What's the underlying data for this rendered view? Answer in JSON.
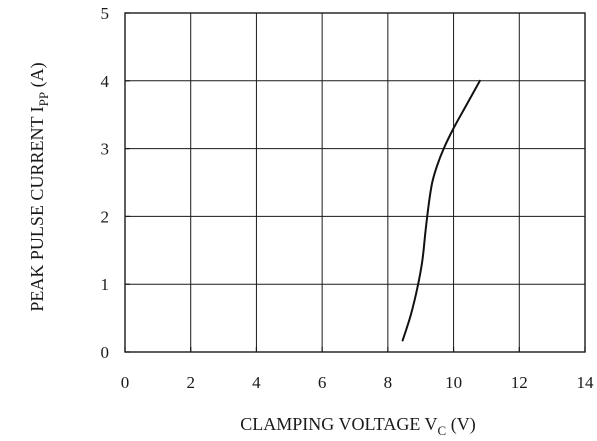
{
  "chart_data": {
    "type": "line",
    "xlabel": {
      "main": "CLAMPING VOLTAGE V",
      "sub": "C",
      "unit": " (V)"
    },
    "ylabel": {
      "main": "PEAK PULSE CURRENT I",
      "sub": "PP",
      "unit": "  (A)"
    },
    "xlim": [
      0,
      14
    ],
    "ylim": [
      0,
      5
    ],
    "x_ticks": [
      0,
      2,
      4,
      6,
      8,
      10,
      12,
      14
    ],
    "y_ticks": [
      0,
      1,
      2,
      3,
      4,
      5
    ],
    "grid": true,
    "series": [
      {
        "x": [
          8.45,
          8.7,
          8.9,
          9.05,
          9.15,
          9.25,
          9.35,
          9.5,
          9.7,
          10.0,
          10.4,
          10.8
        ],
        "y": [
          0.17,
          0.55,
          0.95,
          1.35,
          1.8,
          2.2,
          2.5,
          2.75,
          3.0,
          3.3,
          3.65,
          4.0
        ]
      }
    ]
  }
}
